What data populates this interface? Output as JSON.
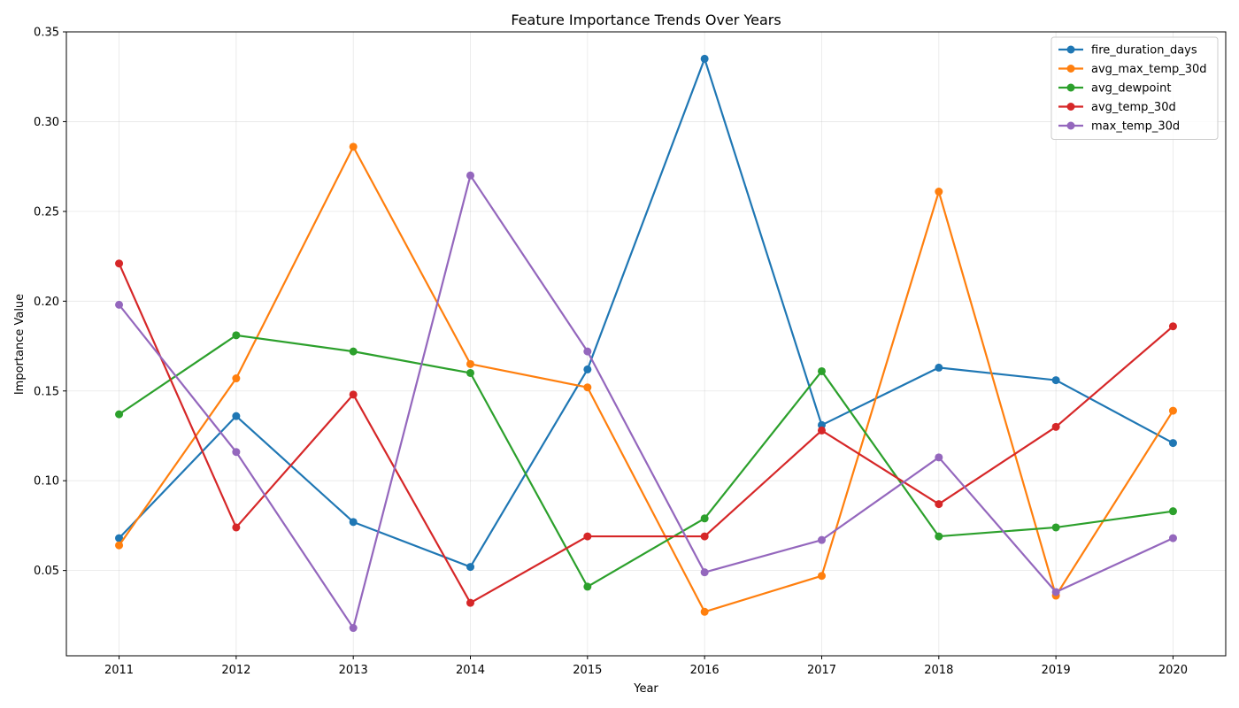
{
  "chart_data": {
    "type": "line",
    "title": "Feature Importance Trends Over Years",
    "xlabel": "Year",
    "ylabel": "Importance Value",
    "x": [
      2011,
      2012,
      2013,
      2014,
      2015,
      2016,
      2017,
      2018,
      2019,
      2020
    ],
    "xlim": [
      2010.55,
      2020.45
    ],
    "ylim": [
      0.0025,
      0.35
    ],
    "yticks": [
      0.05,
      0.1,
      0.15,
      0.2,
      0.25,
      0.3,
      0.35
    ],
    "ytick_labels": [
      "0.05",
      "0.10",
      "0.15",
      "0.20",
      "0.25",
      "0.30",
      "0.35"
    ],
    "grid": true,
    "legend": "top-right",
    "series": [
      {
        "name": "fire_duration_days",
        "color": "#1f77b4",
        "values": [
          0.068,
          0.136,
          0.077,
          0.052,
          0.162,
          0.335,
          0.131,
          0.163,
          0.156,
          0.121
        ]
      },
      {
        "name": "avg_max_temp_30d",
        "color": "#ff7f0e",
        "values": [
          0.064,
          0.157,
          0.286,
          0.165,
          0.152,
          0.027,
          0.047,
          0.261,
          0.036,
          0.139
        ]
      },
      {
        "name": "avg_dewpoint",
        "color": "#2ca02c",
        "values": [
          0.137,
          0.181,
          0.172,
          0.16,
          0.041,
          0.079,
          0.161,
          0.069,
          0.074,
          0.083
        ]
      },
      {
        "name": "avg_temp_30d",
        "color": "#d62728",
        "values": [
          0.221,
          0.074,
          0.148,
          0.032,
          0.069,
          0.069,
          0.128,
          0.087,
          0.13,
          0.186
        ]
      },
      {
        "name": "max_temp_30d",
        "color": "#9467bd",
        "values": [
          0.198,
          0.116,
          0.018,
          0.27,
          0.172,
          0.049,
          0.067,
          0.113,
          0.038,
          0.068
        ]
      }
    ]
  }
}
